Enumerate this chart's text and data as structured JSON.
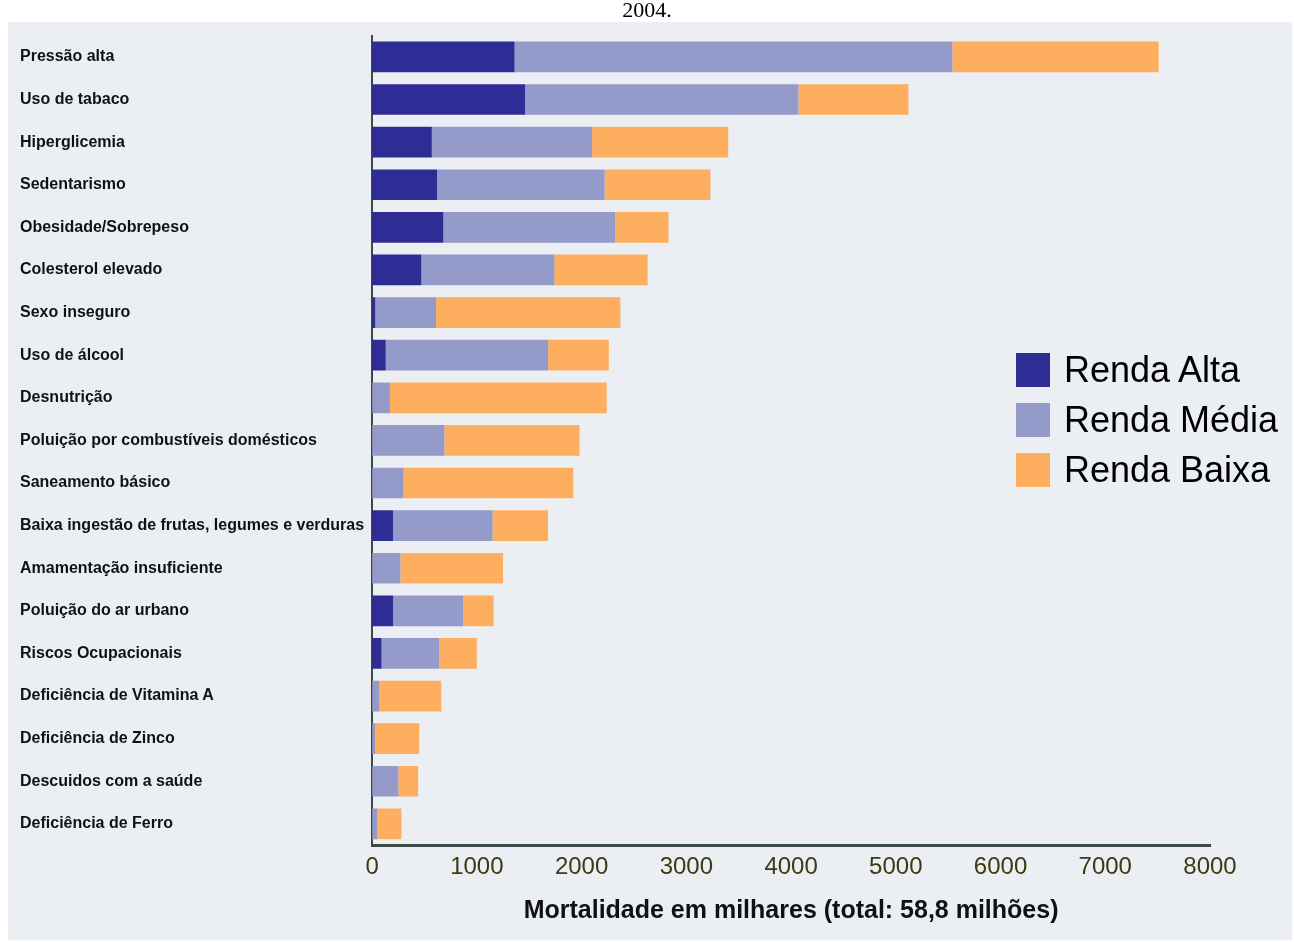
{
  "chart_data": {
    "type": "bar",
    "orientation": "horizontal",
    "stacked": true,
    "title": "2004.",
    "xlabel": "Mortalidade em milhares (total: 58,8 milhões)",
    "categories": [
      "Pressão alta",
      "Uso de tabaco",
      "Hiperglicemia",
      "Sedentarismo",
      "Obesidade/Sobrepeso",
      "Colesterol elevado",
      "Sexo inseguro",
      "Uso de álcool",
      "Desnutrição",
      "Poluição por combustíveis domésticos",
      "Saneamento básico",
      "Baixa ingestão de frutas, legumes e verduras",
      "Amamentação insuficiente",
      "Poluição do ar urbano",
      "Riscos Ocupacionais",
      "Deficiência de Vitamina A",
      "Deficiência de Zinco",
      "Descuidos com a saúde",
      "Deficiência de Ferro"
    ],
    "series": [
      {
        "name": "Renda Alta",
        "color": "#2e2d96",
        "values": [
          1360,
          1460,
          570,
          620,
          680,
          470,
          30,
          130,
          0,
          0,
          0,
          200,
          0,
          200,
          90,
          0,
          0,
          0,
          0
        ]
      },
      {
        "name": "Renda Média",
        "color": "#949ac9",
        "values": [
          4180,
          2610,
          1530,
          1600,
          1640,
          1270,
          580,
          1550,
          170,
          690,
          300,
          950,
          270,
          670,
          550,
          70,
          30,
          250,
          50
        ]
      },
      {
        "name": "Renda Baixa",
        "color": "#fdae5f",
        "values": [
          1970,
          1050,
          1300,
          1010,
          510,
          890,
          1760,
          580,
          2070,
          1290,
          1620,
          530,
          980,
          290,
          360,
          590,
          420,
          190,
          230
        ]
      }
    ],
    "xlim": [
      0,
      8000
    ],
    "xticks": [
      0,
      1000,
      2000,
      3000,
      4000,
      5000,
      6000,
      7000,
      8000
    ],
    "grid": false,
    "legend": "right"
  }
}
